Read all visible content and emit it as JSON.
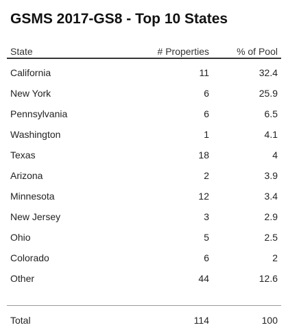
{
  "title": "GSMS 2017-GS8 - Top 10 States",
  "table": {
    "headers": [
      "State",
      "# Properties",
      "% of Pool"
    ],
    "rows": [
      [
        "California",
        11,
        32.4
      ],
      [
        "New York",
        6,
        25.9
      ],
      [
        "Pennsylvania",
        6,
        6.5
      ],
      [
        "Washington",
        1,
        4.1
      ],
      [
        "Texas",
        18,
        4
      ],
      [
        "Arizona",
        2,
        3.9
      ],
      [
        "Minnesota",
        12,
        3.4
      ],
      [
        "New Jersey",
        3,
        2.9
      ],
      [
        "Ohio",
        5,
        2.5
      ],
      [
        "Colorado",
        6,
        2
      ],
      [
        "Other",
        44,
        12.6
      ]
    ],
    "total": [
      "Total",
      114,
      100
    ]
  }
}
